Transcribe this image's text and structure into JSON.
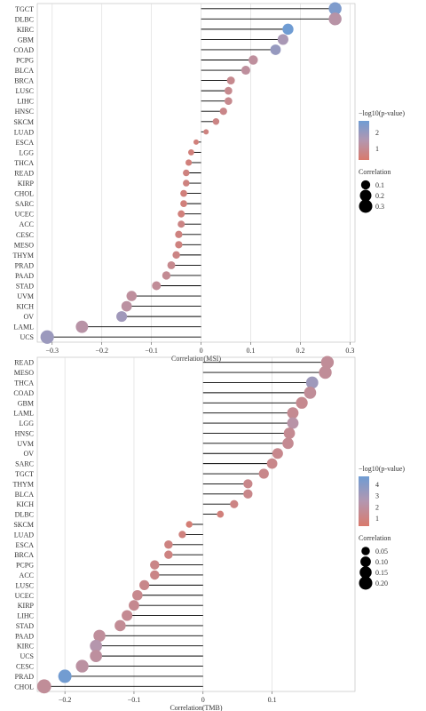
{
  "chart_data": [
    {
      "type": "lollipop",
      "xlabel": "Correlation(MSI)",
      "xlim": [
        -0.33,
        0.31
      ],
      "xticks": [
        -0.3,
        -0.2,
        -0.1,
        0,
        0.1,
        0.2,
        0.3
      ],
      "xtick_labels": [
        "−0.3",
        "−0.2",
        "−0.1",
        "0",
        "0.1",
        "0.2",
        "0.3"
      ],
      "grid": true,
      "categories": [
        "TGCT",
        "DLBC",
        "KIRC",
        "GBM",
        "COAD",
        "PCPG",
        "BLCA",
        "BRCA",
        "LUSC",
        "LIHC",
        "HNSC",
        "SKCM",
        "LUAD",
        "ESCA",
        "LGG",
        "THCA",
        "READ",
        "KIRP",
        "CHOL",
        "SARC",
        "UCEC",
        "ACC",
        "CESC",
        "MESO",
        "THYM",
        "PRAD",
        "PAAD",
        "STAD",
        "UVM",
        "KICH",
        "OV",
        "LAML",
        "UCS"
      ],
      "values": [
        0.27,
        0.27,
        0.175,
        0.165,
        0.15,
        0.105,
        0.09,
        0.06,
        0.055,
        0.055,
        0.045,
        0.03,
        0.01,
        -0.01,
        -0.02,
        -0.025,
        -0.03,
        -0.03,
        -0.035,
        -0.035,
        -0.04,
        -0.04,
        -0.045,
        -0.045,
        -0.05,
        -0.06,
        -0.07,
        -0.09,
        -0.14,
        -0.15,
        -0.16,
        -0.24,
        -0.31
      ],
      "neglog10p": [
        2.5,
        1.2,
        2.8,
        1.6,
        2.0,
        1.0,
        1.0,
        0.7,
        0.7,
        0.7,
        0.6,
        0.5,
        0.4,
        0.3,
        0.3,
        0.3,
        0.4,
        0.4,
        0.3,
        0.3,
        0.3,
        0.5,
        0.4,
        0.4,
        0.5,
        0.7,
        0.8,
        0.9,
        1.0,
        1.1,
        1.8,
        1.2,
        1.9
      ],
      "color_legend": {
        "title": "−log10(p-value)",
        "ticks": [
          "2",
          "1"
        ],
        "range": [
          0,
          2.8
        ]
      },
      "size_legend": {
        "title": "Correlation",
        "labels": [
          "0.1",
          "0.2",
          "0.3"
        ],
        "values": [
          0.1,
          0.2,
          0.3
        ]
      }
    },
    {
      "type": "lollipop",
      "xlabel": "Correlation(TMB)",
      "xlim": [
        -0.24,
        0.22
      ],
      "xticks": [
        -0.2,
        -0.1,
        0,
        0.1
      ],
      "xtick_labels": [
        "−0.2",
        "−0.1",
        "0",
        "0.1"
      ],
      "grid": true,
      "categories": [
        "READ",
        "MESO",
        "THCA",
        "COAD",
        "GBM",
        "LAML",
        "LGG",
        "HNSC",
        "UVM",
        "OV",
        "SARC",
        "TGCT",
        "THYM",
        "BLCA",
        "KICH",
        "DLBC",
        "SKCM",
        "LUAD",
        "ESCA",
        "BRCA",
        "PCPG",
        "ACC",
        "LUSC",
        "UCEC",
        "KIRP",
        "LIHC",
        "STAD",
        "PAAD",
        "KIRC",
        "UCS",
        "CESC",
        "PRAD",
        "CHOL"
      ],
      "values": [
        0.18,
        0.177,
        0.158,
        0.155,
        0.143,
        0.13,
        0.13,
        0.125,
        0.123,
        0.108,
        0.1,
        0.088,
        0.065,
        0.065,
        0.045,
        0.025,
        -0.02,
        -0.03,
        -0.05,
        -0.05,
        -0.07,
        -0.07,
        -0.085,
        -0.095,
        -0.1,
        -0.11,
        -0.12,
        -0.15,
        -0.155,
        -0.155,
        -0.175,
        -0.2,
        -0.23
      ],
      "neglog10p": [
        1.5,
        1.5,
        3.0,
        1.5,
        1.2,
        1.3,
        2.0,
        1.3,
        1.3,
        1.1,
        1.0,
        1.0,
        1.0,
        1.0,
        0.8,
        0.5,
        0.3,
        0.6,
        0.7,
        0.7,
        0.9,
        0.9,
        1.0,
        1.1,
        1.2,
        1.3,
        1.4,
        1.6,
        2.2,
        1.7,
        1.8,
        4.5,
        1.5
      ],
      "color_legend": {
        "title": "−log10(p-value)",
        "ticks": [
          "4",
          "3",
          "2",
          "1"
        ],
        "range": [
          0,
          4.6
        ]
      },
      "size_legend": {
        "title": "Correlation",
        "labels": [
          "0.05",
          "0.10",
          "0.15",
          "0.20"
        ],
        "values": [
          0.05,
          0.1,
          0.15,
          0.2
        ]
      }
    }
  ],
  "colors": {
    "high": "#6f9cd3",
    "mid": "#b397b0",
    "low": "#d97a6c",
    "stem": "#000000",
    "grid": "#dddddd"
  }
}
